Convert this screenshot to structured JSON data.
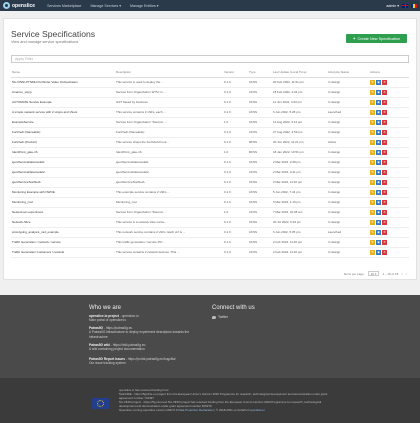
{
  "nav": {
    "brand": "openslice",
    "items": [
      "Services Marketplace",
      "Manage Services ▾",
      "Manage Entities ▾"
    ],
    "user": "admin ▾"
  },
  "page": {
    "title": "Service Specifications",
    "subtitle": "View and manage service specifications",
    "create_label": "Create New Specification",
    "search_placeholder": "Apply Filter"
  },
  "table": {
    "headers": [
      "Name",
      "Description",
      "Version",
      "Type",
      "Last Update (Local Time)",
      "Lifecycle Status",
      "Actions"
    ],
    "rows": [
      [
        "5G-VINNI-PTNMH Portfinder Video Orchestration",
        "This service is used to deploy the ...",
        "0.1.0",
        "CFSS",
        "20 Feb 2022, 11:51 pm",
        "In design"
      ],
      [
        "Amazon_vApp",
        "Service from Organization 'ETSI' in ...",
        "0.1.0",
        "CFSS",
        "18 Feb 2022, 4:34 pm",
        "In design"
      ],
      [
        "AUTOMATE Service Example",
        "GST based by business",
        "0.1.0",
        "CFSS",
        "11 Jun 2022, 3:43 pm",
        "In design"
      ],
      [
        "A simple network service with 2 vApps and vNets",
        "This service contains 2 vNFs, each ...",
        "0.1.0",
        "CFSS",
        "6 Jun 2022, 5:28 pm",
        "Launched"
      ],
      [
        "ExampleService",
        "Service from Organization 'Telecom ...",
        "1.0",
        "CFSS",
        "11 Aug 2022, 3:14 pm",
        "In design"
      ],
      [
        "FortiVedi (Nameable)",
        "FortiVedi (Nameable)",
        "0.1.0",
        "CFSS",
        "27 Aug 2022, 4:59 pm",
        "In design"
      ],
      [
        "FortiVedi (Product)",
        "This service chaps the FortiVedi Front...",
        "0.1.0",
        "RFSS",
        "20 Jun 2022, 11:21 pm",
        "Active"
      ],
      [
        "IdentPoint_gate-nS",
        "IdentPoint_gate-nS",
        "1.0",
        "RFSS",
        "18 Jan 2022, 10:51 pm",
        "In design"
      ],
      [
        "igentServiceDatamodel1",
        "igentServiceDatamodel1",
        "0.1.0",
        "CFSS",
        "2 Mar 2022, 2:28 pm",
        "In design"
      ],
      [
        "igentServiceDatamodel2",
        "igentServiceDatamodel2",
        "0.1.0",
        "CFSS",
        "2 Mar 2022, 2:41 pm",
        "In design"
      ],
      [
        "igentServiceTestNetA",
        "igentServiceTestNetA",
        "0.1.0",
        "CFSS",
        "2 Mar 2022, 11:40 pm",
        "In design"
      ],
      [
        "Monitoring Example with NWOE",
        "This example service contains 2 vNFs ...",
        "0.1.0",
        "CFSS",
        "5 Jun 2022, 7:44 pm",
        "In design"
      ],
      [
        "Monitoring_nsd",
        "Monitoring_nsd",
        "0.1.0",
        "CFSS",
        "6 Mar 2022, 1:10 pm",
        "In design"
      ],
      [
        "Nested-ven-experiment",
        "Service from Organization 'Telecom ...",
        "1.0",
        "CFSS",
        "7 Mar 2022, 10:28 am",
        "In design"
      ],
      [
        "Network-Slice",
        "This service is a network slice conta...",
        "0.1.0",
        "CFSS",
        "20 Jul 2022, 6:19 pm",
        "In design"
      ],
      [
        "prototyping_analysis_nsd_example",
        "This network service contains 2 vNFs. Each vnf is ...",
        "0.1.0",
        "CFSS",
        "6 Jun 2022, 5:35 pm",
        "Launched"
      ],
      [
        "Traffic Generation / network / service",
        "This traffic generation / service PF/...",
        "0.1.0",
        "CFSS",
        "2 Feb 2022, 11:40 pm",
        "In design"
      ],
      [
        "Traffic Generation Customers / network",
        "This service contains 2 network devices. This ...",
        "0.1.0",
        "CFSS",
        "2 Feb 2022, 11:40 pm",
        "In design"
      ]
    ]
  },
  "pager": {
    "items_per_page_label": "Items per page:",
    "items_per_page": "20",
    "range": "1 – 18 of 18"
  },
  "footer": {
    "who_heading": "Who we are",
    "who_intro_1": "openslice.io project",
    "who_intro_2": "- openslice.io",
    "who_intro_3": "Main portal of openslice.io",
    "item1_title": "Patras5G",
    "item1_url": "- https://patras5g.eu",
    "item1_desc": "A Patras5G infrastructure to deploy experiment descriptors towards the infrastructure",
    "item2_title": "Patras5G wiki",
    "item2_url": "- https://wiki.patras5g.eu",
    "item2_desc": "A wiki containing project documentation",
    "item3_title": "Patras5G Report issues",
    "item3_url": "- https://portal.patras5g.eu/bugzilla/",
    "item3_desc": "Our issue tracking system",
    "connect_heading": "Connect with us",
    "twitter": "Twitter",
    "fund_1": "openslice.io has received funding from:",
    "fund_2": "5GinFIRE - https://5ginfire.eu project from the European Union's Horizon 2020 Programme for research, technological development and demonstration under grant agreement number 732497",
    "fund_3": "5G-VINNI project - https://5g-vinni.eu/ 5G-VINNI project has received funding from the European Union's Horizon 2020 Programme for research, technological development and demonstration under grant agreement number 815279",
    "fund_4": "Openslice running openslice version 2022.5.0",
    "fund_link": "Data Protection Declaration",
    "fund_5": "| © 2018-2021 on behalf of",
    "fund_org": "openslice.io"
  }
}
